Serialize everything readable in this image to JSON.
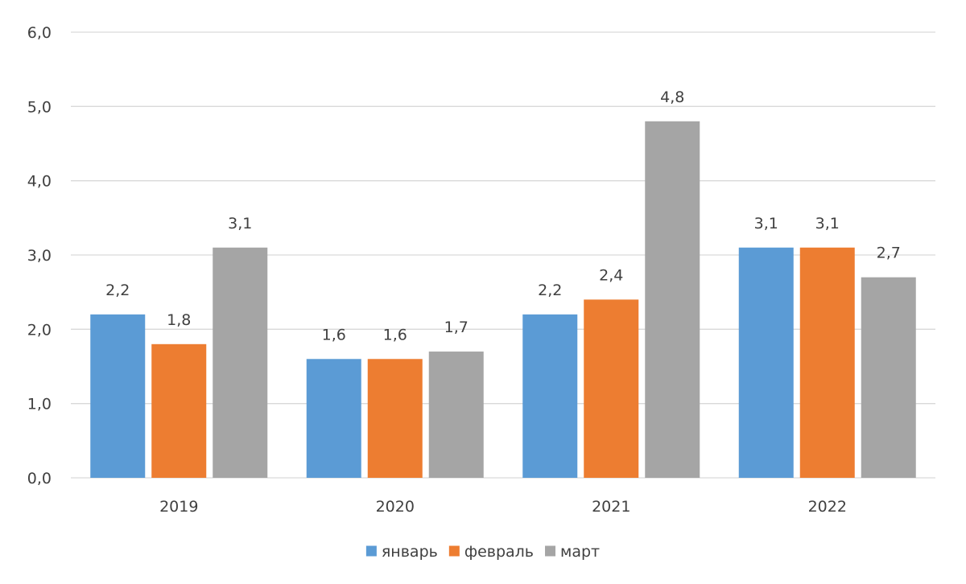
{
  "chart_data": {
    "type": "bar",
    "categories": [
      "2019",
      "2020",
      "2021",
      "2022"
    ],
    "series": [
      {
        "name": "январь",
        "values": [
          2.2,
          1.6,
          2.2,
          3.1
        ],
        "labels": [
          "2,2",
          "1,6",
          "2,2",
          "3,1"
        ],
        "color": "#5B9BD5"
      },
      {
        "name": "февраль",
        "values": [
          1.8,
          1.6,
          2.4,
          3.1
        ],
        "labels": [
          "1,8",
          "1,6",
          "2,4",
          "3,1"
        ],
        "color": "#ED7D31"
      },
      {
        "name": "март",
        "values": [
          3.1,
          1.7,
          4.8,
          2.7
        ],
        "labels": [
          "3,1",
          "1,7",
          "4,8",
          "2,7"
        ],
        "color": "#A5A5A5"
      }
    ],
    "ylim": [
      0,
      6
    ],
    "yticks": [
      0,
      1,
      2,
      3,
      4,
      5,
      6
    ],
    "ytick_labels": [
      "0,0",
      "1,0",
      "2,0",
      "3,0",
      "4,0",
      "5,0",
      "6,0"
    ],
    "grid": true,
    "legend_position": "bottom",
    "gridline_color": "#D9D9D9",
    "text_color": "#404040"
  }
}
